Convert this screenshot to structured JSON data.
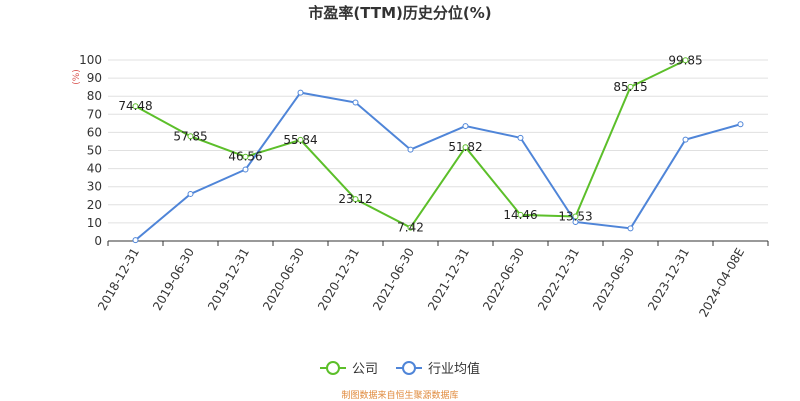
{
  "chart_data": {
    "type": "line",
    "title": "市盈率(TTM)历史分位(%)",
    "unit": "(%)",
    "categories": [
      "2018-12-31",
      "2019-06-30",
      "2019-12-31",
      "2020-06-30",
      "2020-12-31",
      "2021-06-30",
      "2021-12-31",
      "2022-06-30",
      "2022-12-31",
      "2023-06-30",
      "2023-12-31",
      "2024-04-08E"
    ],
    "ylim": [
      0,
      100
    ],
    "yticks": [
      0,
      10,
      20,
      30,
      40,
      50,
      60,
      70,
      80,
      90,
      100
    ],
    "grid": true,
    "legend_position": "bottom",
    "series": [
      {
        "name": "公司",
        "color": "#5cbf2a",
        "values": [
          74.48,
          57.85,
          46.56,
          55.84,
          23.12,
          7.42,
          51.82,
          14.46,
          13.53,
          85.15,
          99.85,
          null
        ],
        "labels": [
          "74.48",
          "57.85",
          "46.56",
          "55.84",
          "23.12",
          "7.42",
          "51.82",
          "14.46",
          "13.53",
          "85.15",
          "99.85",
          ""
        ]
      },
      {
        "name": "行业均值",
        "color": "#4f85d8",
        "values": [
          0.5,
          26,
          39.5,
          82,
          76.5,
          50.5,
          63.5,
          57,
          10.5,
          7,
          56,
          64.5
        ]
      }
    ]
  },
  "footer": {
    "source": "制图数据来自恒生聚源数据库"
  }
}
